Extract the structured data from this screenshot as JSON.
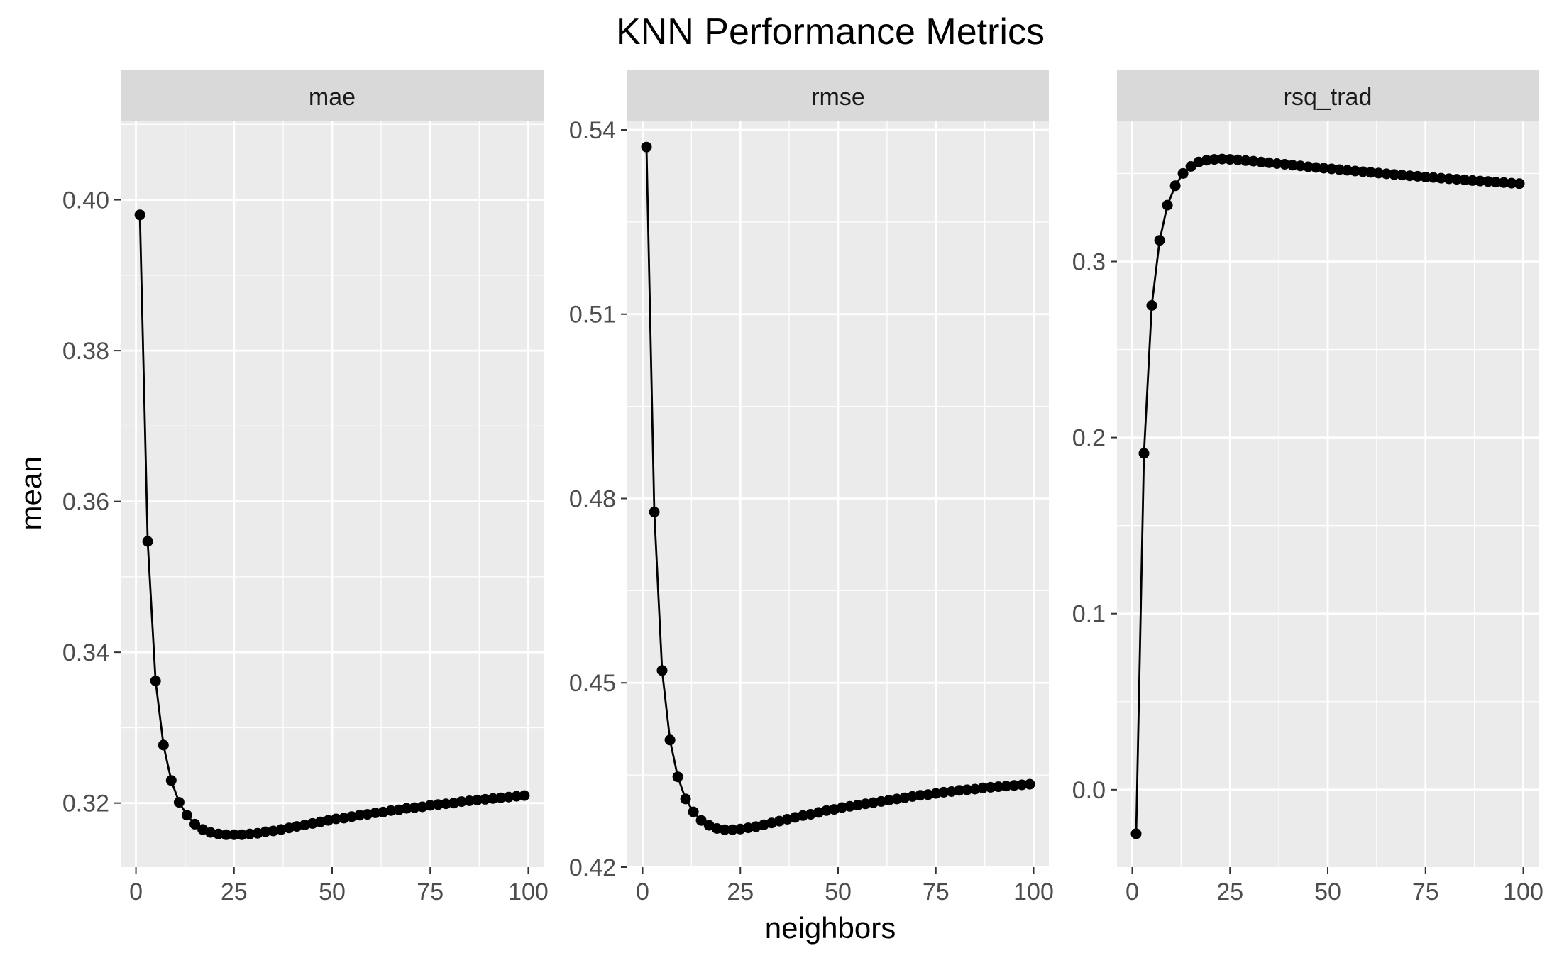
{
  "chart_data": {
    "type": "line",
    "title": "KNN Performance Metrics",
    "xlabel": "neighbors",
    "ylabel": "mean",
    "x_ticks": [
      0,
      25,
      50,
      75,
      100
    ],
    "x_tick_labels": [
      "0",
      "25",
      "50",
      "75",
      "100"
    ],
    "xlim": [
      -3.9,
      103.9
    ],
    "grid": true,
    "legend": "none",
    "colors": {
      "panel": "#EBEBEB",
      "strip": "#D9D9D9",
      "grid": "#FFFFFF",
      "line": "#000000"
    },
    "facets": [
      {
        "name": "mae",
        "ylim": [
          0.3115,
          0.4105
        ],
        "y_ticks": [
          0.32,
          0.34,
          0.36,
          0.38,
          0.4
        ],
        "y_tick_labels": [
          "0.32",
          "0.34",
          "0.36",
          "0.38",
          "0.40"
        ],
        "x": [
          1,
          3,
          5,
          7,
          9,
          11,
          13,
          15,
          17,
          19,
          21,
          23,
          25,
          27,
          29,
          31,
          33,
          35,
          37,
          39,
          41,
          43,
          45,
          47,
          49,
          51,
          53,
          55,
          57,
          59,
          61,
          63,
          65,
          67,
          69,
          71,
          73,
          75,
          77,
          79,
          81,
          83,
          85,
          87,
          89,
          91,
          93,
          95,
          97,
          99
        ],
        "values": [
          0.398,
          0.3547,
          0.3362,
          0.3277,
          0.323,
          0.3201,
          0.3184,
          0.3172,
          0.3165,
          0.3161,
          0.3159,
          0.3158,
          0.3158,
          0.3158,
          0.3159,
          0.316,
          0.3162,
          0.3163,
          0.3165,
          0.3167,
          0.3169,
          0.3171,
          0.3173,
          0.3175,
          0.3177,
          0.3179,
          0.318,
          0.3182,
          0.3184,
          0.3185,
          0.3187,
          0.3188,
          0.319,
          0.3191,
          0.3193,
          0.3194,
          0.3195,
          0.3197,
          0.3198,
          0.3199,
          0.32,
          0.3202,
          0.3203,
          0.3204,
          0.3205,
          0.3206,
          0.3207,
          0.3208,
          0.3209,
          0.321
        ]
      },
      {
        "name": "rmse",
        "ylim": [
          0.42,
          0.5415
        ],
        "y_ticks": [
          0.42,
          0.45,
          0.48,
          0.51,
          0.54
        ],
        "y_tick_labels": [
          "0.42",
          "0.45",
          "0.48",
          "0.51",
          "0.54"
        ],
        "x": [
          1,
          3,
          5,
          7,
          9,
          11,
          13,
          15,
          17,
          19,
          21,
          23,
          25,
          27,
          29,
          31,
          33,
          35,
          37,
          39,
          41,
          43,
          45,
          47,
          49,
          51,
          53,
          55,
          57,
          59,
          61,
          63,
          65,
          67,
          69,
          71,
          73,
          75,
          77,
          79,
          81,
          83,
          85,
          87,
          89,
          91,
          93,
          95,
          97,
          99
        ],
        "values": [
          0.5372,
          0.4778,
          0.452,
          0.4407,
          0.4347,
          0.4311,
          0.429,
          0.4276,
          0.4268,
          0.4263,
          0.4261,
          0.4261,
          0.4262,
          0.4264,
          0.4266,
          0.4269,
          0.4272,
          0.4275,
          0.4278,
          0.4281,
          0.4284,
          0.4286,
          0.4289,
          0.4292,
          0.4294,
          0.4297,
          0.4299,
          0.4301,
          0.4303,
          0.4305,
          0.4307,
          0.4309,
          0.4311,
          0.4313,
          0.4315,
          0.4317,
          0.4318,
          0.432,
          0.4322,
          0.4323,
          0.4325,
          0.4326,
          0.4327,
          0.4329,
          0.433,
          0.4331,
          0.4332,
          0.4333,
          0.4334,
          0.4335
        ]
      },
      {
        "name": "rsq_trad",
        "ylim": [
          -0.044,
          0.38
        ],
        "y_ticks": [
          0.0,
          0.1,
          0.2,
          0.3
        ],
        "y_tick_labels": [
          "0.0",
          "0.1",
          "0.2",
          "0.3"
        ],
        "x": [
          1,
          3,
          5,
          7,
          9,
          11,
          13,
          15,
          17,
          19,
          21,
          23,
          25,
          27,
          29,
          31,
          33,
          35,
          37,
          39,
          41,
          43,
          45,
          47,
          49,
          51,
          53,
          55,
          57,
          59,
          61,
          63,
          65,
          67,
          69,
          71,
          73,
          75,
          77,
          79,
          81,
          83,
          85,
          87,
          89,
          91,
          93,
          95,
          97,
          99
        ],
        "values": [
          -0.025,
          0.191,
          0.275,
          0.312,
          0.332,
          0.343,
          0.35,
          0.354,
          0.3565,
          0.3575,
          0.358,
          0.3582,
          0.358,
          0.3577,
          0.3573,
          0.357,
          0.3565,
          0.3561,
          0.3556,
          0.3552,
          0.3547,
          0.3543,
          0.3538,
          0.3534,
          0.353,
          0.3526,
          0.3522,
          0.3518,
          0.3514,
          0.351,
          0.3506,
          0.3502,
          0.3498,
          0.3494,
          0.3491,
          0.3487,
          0.3484,
          0.348,
          0.3477,
          0.3473,
          0.347,
          0.3467,
          0.3464,
          0.346,
          0.3457,
          0.3454,
          0.3451,
          0.3448,
          0.3445,
          0.3442
        ]
      }
    ]
  }
}
